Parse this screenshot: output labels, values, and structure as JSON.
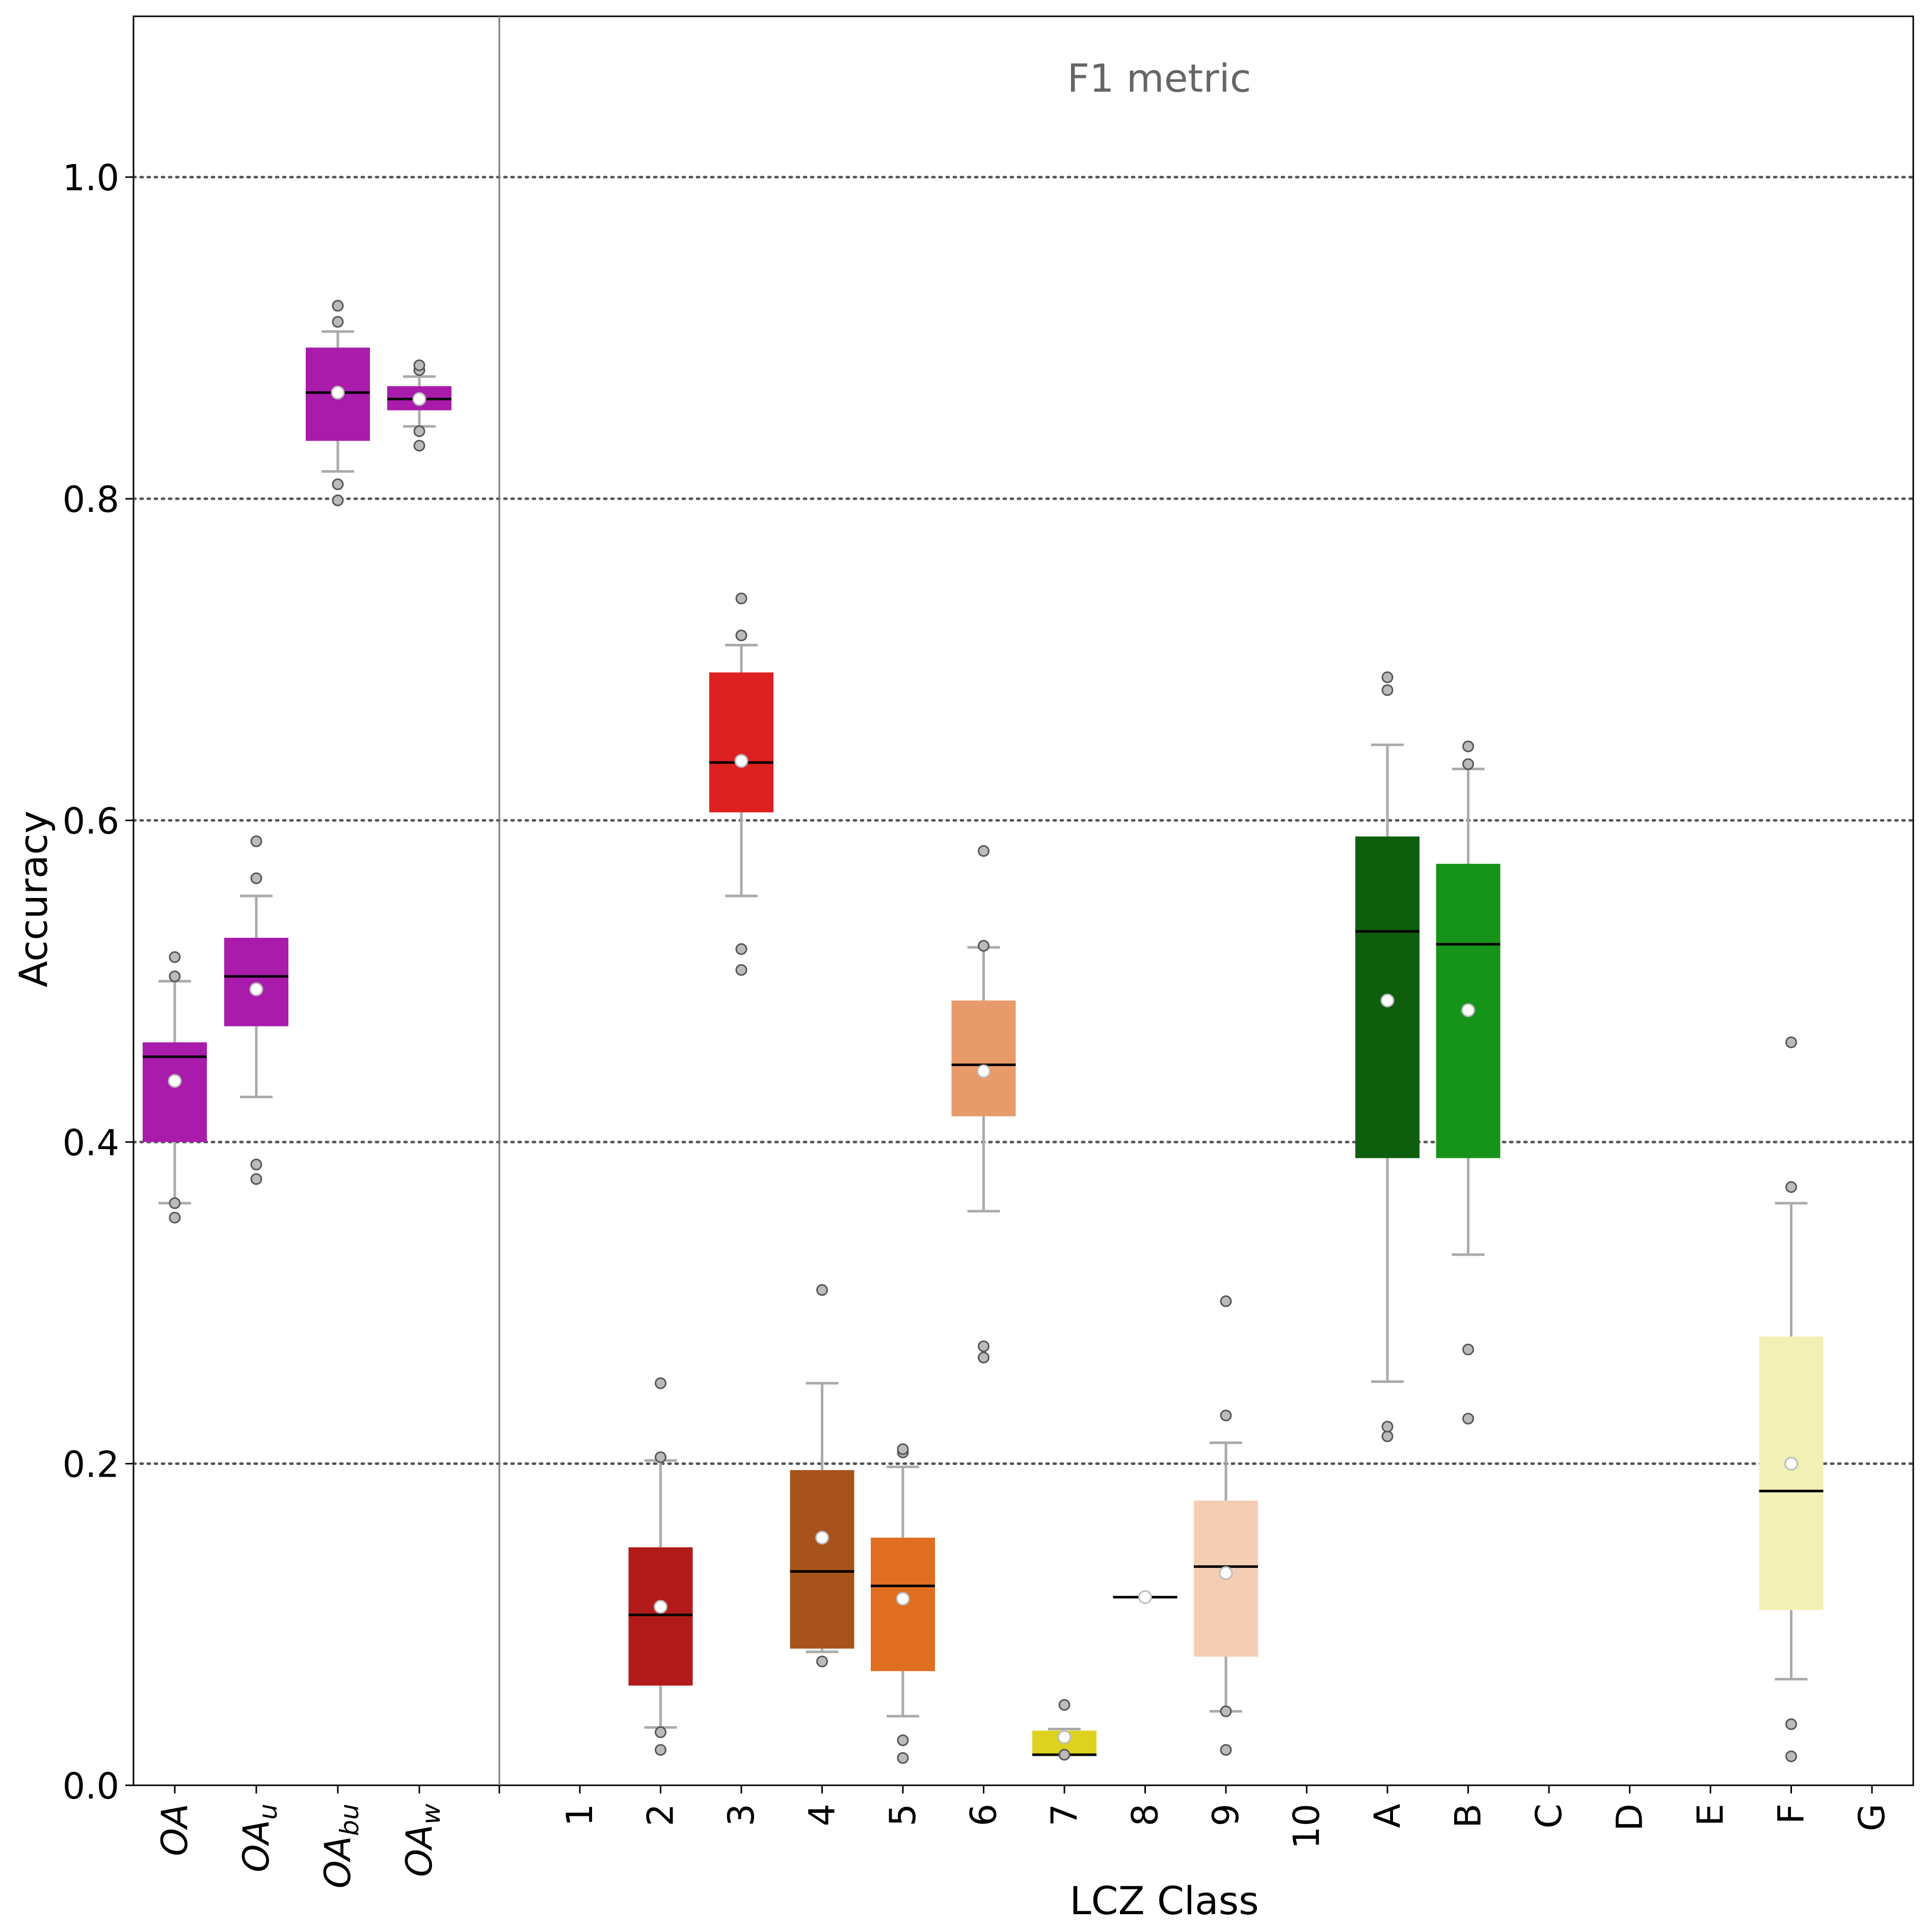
{
  "chart_data": {
    "type": "box",
    "annotation": "F1 metric",
    "xlabel": "LCZ Class",
    "ylabel": "Accuracy",
    "ylim": [
      0.0,
      1.1
    ],
    "yticks": [
      "0.0",
      "0.2",
      "0.4",
      "0.6",
      "0.8",
      "1.0"
    ],
    "ytick_values": [
      0.0,
      0.2,
      0.4,
      0.6,
      0.8,
      1.0
    ],
    "grid": "horizontal dotted at 0.2, 0.4, 0.6, 0.8, 1.0",
    "overall_panel": {
      "categories": [
        {
          "base": "OA",
          "sub": ""
        },
        {
          "base": "OA",
          "sub": "u"
        },
        {
          "base": "OA",
          "sub": "bu"
        },
        {
          "base": "OA",
          "sub": "w"
        }
      ],
      "boxes": [
        {
          "color": "#a91bab",
          "q1": 0.4,
          "median": 0.453,
          "q3": 0.462,
          "wlo": 0.362,
          "whi": 0.5,
          "mean": 0.438,
          "fliers": [
            0.353,
            0.362,
            0.503,
            0.515
          ]
        },
        {
          "color": "#a91bab",
          "q1": 0.472,
          "median": 0.503,
          "q3": 0.527,
          "wlo": 0.428,
          "whi": 0.553,
          "mean": 0.495,
          "fliers": [
            0.377,
            0.386,
            0.564,
            0.587
          ]
        },
        {
          "color": "#a91bab",
          "q1": 0.836,
          "median": 0.866,
          "q3": 0.894,
          "wlo": 0.817,
          "whi": 0.904,
          "mean": 0.866,
          "fliers": [
            0.799,
            0.809,
            0.91,
            0.92
          ]
        },
        {
          "color": "#a91bab",
          "q1": 0.855,
          "median": 0.862,
          "q3": 0.87,
          "wlo": 0.845,
          "whi": 0.876,
          "mean": 0.862,
          "fliers": [
            0.833,
            0.842,
            0.88,
            0.883
          ]
        }
      ]
    },
    "class_panel": {
      "categories": [
        "1",
        "2",
        "3",
        "4",
        "5",
        "6",
        "7",
        "8",
        "9",
        "10",
        "A",
        "B",
        "C",
        "D",
        "E",
        "F",
        "G"
      ],
      "boxes": [
        null,
        {
          "color": "#b31b1b",
          "q1": 0.062,
          "median": 0.106,
          "q3": 0.148,
          "wlo": 0.036,
          "whi": 0.202,
          "mean": 0.111,
          "fliers": [
            0.022,
            0.033,
            0.204,
            0.25
          ]
        },
        {
          "color": "#dd2121",
          "q1": 0.605,
          "median": 0.636,
          "q3": 0.692,
          "wlo": 0.553,
          "whi": 0.709,
          "mean": 0.637,
          "fliers": [
            0.507,
            0.52,
            0.715,
            0.738
          ]
        },
        {
          "color": "#a8531b",
          "q1": 0.085,
          "median": 0.133,
          "q3": 0.196,
          "wlo": 0.083,
          "whi": 0.25,
          "mean": 0.154,
          "fliers": [
            0.077,
            0.308
          ]
        },
        {
          "color": "#e06e21",
          "q1": 0.071,
          "median": 0.124,
          "q3": 0.154,
          "wlo": 0.043,
          "whi": 0.198,
          "mean": 0.116,
          "fliers": [
            0.017,
            0.028,
            0.207,
            0.209
          ]
        },
        {
          "color": "#e89b6a",
          "q1": 0.416,
          "median": 0.448,
          "q3": 0.488,
          "wlo": 0.357,
          "whi": 0.521,
          "mean": 0.444,
          "fliers": [
            0.266,
            0.273,
            0.522,
            0.581
          ]
        },
        {
          "color": "#dcd21f",
          "q1": 0.019,
          "median": 0.019,
          "q3": 0.034,
          "wlo": 0.019,
          "whi": 0.035,
          "mean": 0.03,
          "fliers": [
            0.019,
            0.05
          ]
        },
        {
          "color": "#000000",
          "q1": 0.117,
          "median": 0.117,
          "q3": 0.117,
          "wlo": 0.117,
          "whi": 0.117,
          "mean": 0.117,
          "fliers": []
        },
        {
          "color": "#f4ceb3",
          "q1": 0.08,
          "median": 0.136,
          "q3": 0.177,
          "wlo": 0.046,
          "whi": 0.213,
          "mean": 0.132,
          "fliers": [
            0.022,
            0.046,
            0.23,
            0.301
          ]
        },
        null,
        {
          "color": "#0e5e0e",
          "q1": 0.39,
          "median": 0.531,
          "q3": 0.59,
          "wlo": 0.251,
          "whi": 0.647,
          "mean": 0.488,
          "fliers": [
            0.217,
            0.223,
            0.681,
            0.689
          ]
        },
        {
          "color": "#16941a",
          "q1": 0.39,
          "median": 0.523,
          "q3": 0.573,
          "wlo": 0.33,
          "whi": 0.632,
          "mean": 0.482,
          "fliers": [
            0.228,
            0.271,
            0.635,
            0.646
          ]
        },
        null,
        null,
        null,
        {
          "color": "#f2f0b4",
          "q1": 0.109,
          "median": 0.183,
          "q3": 0.279,
          "wlo": 0.066,
          "whi": 0.362,
          "mean": 0.2,
          "fliers": [
            0.018,
            0.038,
            0.372,
            0.462
          ]
        },
        null
      ]
    }
  }
}
